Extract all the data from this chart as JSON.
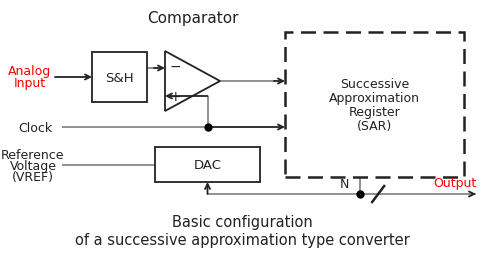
{
  "title_line1": "Basic configuration",
  "title_line2": "of a successive approximation type converter",
  "comparator_label": "Comparator",
  "sar_lines": [
    "Successive",
    "Approximation",
    "Register",
    "(SAR)"
  ],
  "sh_label": "S&H",
  "dac_label": "DAC",
  "analog_input_line1": "Analog",
  "analog_input_line2": "Input",
  "clock_label": "Clock",
  "ref_line1": "Reference",
  "ref_line2": "Voltage",
  "ref_line3": "(VREF)",
  "output_label": "Output",
  "n_label": "N",
  "red_color": "#FF0000",
  "black_color": "#000000",
  "line_color": "#888888",
  "bg_color": "#FFFFFF",
  "arrow_color": "#222222"
}
